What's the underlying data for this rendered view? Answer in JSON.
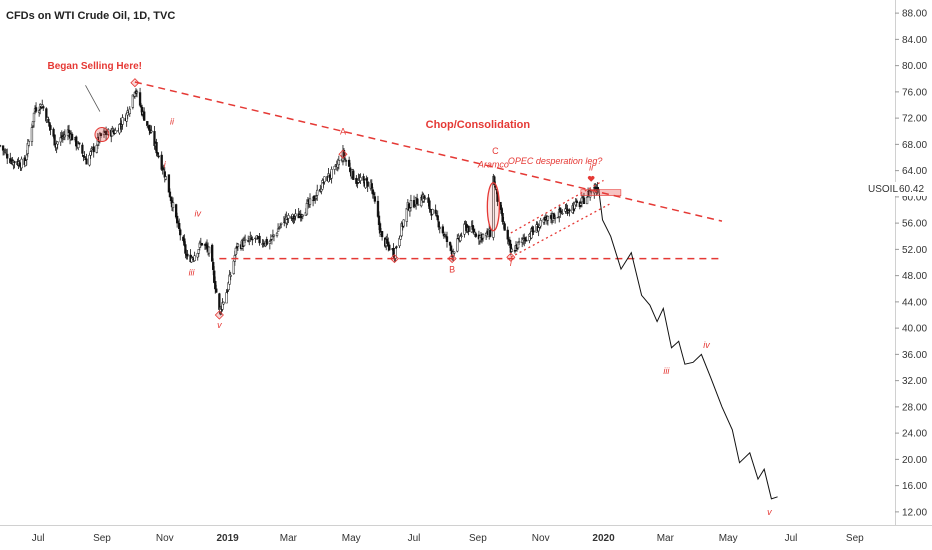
{
  "chart_data": {
    "type": "line",
    "title": "CFDs on WTI Crude Oil, 1D, TVC",
    "symbol": "USOIL",
    "last_value": "60.42",
    "y_ticks": [
      12,
      16,
      20,
      24,
      28,
      32,
      36,
      40,
      44,
      48,
      52,
      56,
      60,
      64,
      68,
      72,
      76,
      80,
      84,
      88
    ],
    "y_tick_labels": [
      "12.00",
      "16.00",
      "20.00",
      "24.00",
      "28.00",
      "32.00",
      "36.00",
      "40.00",
      "44.00",
      "48.00",
      "52.00",
      "56.00",
      "60.00",
      "64.00",
      "68.00",
      "72.00",
      "76.00",
      "80.00",
      "84.00",
      "88.00"
    ],
    "x_ticks": [
      {
        "date": "2018-07-01",
        "label": "Jul"
      },
      {
        "date": "2018-09-01",
        "label": "Sep"
      },
      {
        "date": "2018-11-01",
        "label": "Nov"
      },
      {
        "date": "2019-01-01",
        "label": "2019"
      },
      {
        "date": "2019-03-01",
        "label": "Mar"
      },
      {
        "date": "2019-05-01",
        "label": "May"
      },
      {
        "date": "2019-07-01",
        "label": "Jul"
      },
      {
        "date": "2019-09-01",
        "label": "Sep"
      },
      {
        "date": "2019-11-01",
        "label": "Nov"
      },
      {
        "date": "2020-01-01",
        "label": "2020"
      },
      {
        "date": "2020-03-01",
        "label": "Mar"
      },
      {
        "date": "2020-05-01",
        "label": "May"
      },
      {
        "date": "2020-07-01",
        "label": "Jul"
      },
      {
        "date": "2020-09-01",
        "label": "Sep"
      }
    ],
    "bold_x_labels": [
      "2019",
      "2020"
    ],
    "ylim": [
      10,
      90
    ],
    "xlim": [
      "2018-05-25",
      "2020-10-10"
    ],
    "price_series": [
      [
        "2018-05-25",
        67.8
      ],
      [
        "2018-06-05",
        65.5
      ],
      [
        "2018-06-18",
        65.0
      ],
      [
        "2018-06-28",
        73.5
      ],
      [
        "2018-07-05",
        74.0
      ],
      [
        "2018-07-18",
        68.0
      ],
      [
        "2018-07-30",
        70.0
      ],
      [
        "2018-08-10",
        67.5
      ],
      [
        "2018-08-17",
        65.5
      ],
      [
        "2018-09-01",
        69.5
      ],
      [
        "2018-09-14",
        70.0
      ],
      [
        "2018-09-25",
        72.5
      ],
      [
        "2018-10-03",
        76.5
      ],
      [
        "2018-10-10",
        73.0
      ],
      [
        "2018-10-20",
        69.0
      ],
      [
        "2018-11-01",
        63.5
      ],
      [
        "2018-11-13",
        56.0
      ],
      [
        "2018-11-23",
        50.5
      ],
      [
        "2018-11-29",
        51.0
      ],
      [
        "2018-12-07",
        53.0
      ],
      [
        "2018-12-15",
        51.5
      ],
      [
        "2018-12-24",
        42.5
      ],
      [
        "2019-01-01",
        46.0
      ],
      [
        "2019-01-10",
        52.5
      ],
      [
        "2019-01-25",
        53.5
      ],
      [
        "2019-02-10",
        53.0
      ],
      [
        "2019-02-25",
        56.5
      ],
      [
        "2019-03-10",
        57.0
      ],
      [
        "2019-03-25",
        59.5
      ],
      [
        "2019-04-05",
        62.5
      ],
      [
        "2019-04-15",
        64.0
      ],
      [
        "2019-04-23",
        66.5
      ],
      [
        "2019-05-05",
        62.5
      ],
      [
        "2019-05-20",
        62.0
      ],
      [
        "2019-05-31",
        53.5
      ],
      [
        "2019-06-12",
        51.5
      ],
      [
        "2019-06-25",
        58.5
      ],
      [
        "2019-07-10",
        60.0
      ],
      [
        "2019-07-25",
        56.0
      ],
      [
        "2019-08-07",
        51.5
      ],
      [
        "2019-08-20",
        55.5
      ],
      [
        "2019-09-03",
        54.0
      ],
      [
        "2019-09-14",
        54.5
      ],
      [
        "2019-09-16",
        62.9
      ],
      [
        "2019-09-22",
        58.0
      ],
      [
        "2019-10-03",
        51.5
      ],
      [
        "2019-10-15",
        53.5
      ],
      [
        "2019-10-30",
        55.5
      ],
      [
        "2019-11-12",
        57.0
      ],
      [
        "2019-11-25",
        58.0
      ],
      [
        "2019-12-10",
        59.0
      ],
      [
        "2019-12-20",
        61.0
      ],
      [
        "2019-12-27",
        61.5
      ]
    ],
    "projection_series": [
      [
        "2019-12-27",
        61.5
      ],
      [
        "2019-12-31",
        56.5
      ],
      [
        "2020-01-08",
        54.0
      ],
      [
        "2020-01-18",
        49.0
      ],
      [
        "2020-01-28",
        51.5
      ],
      [
        "2020-02-07",
        45.0
      ],
      [
        "2020-02-15",
        43.5
      ],
      [
        "2020-02-22",
        41.0
      ],
      [
        "2020-02-28",
        43.0
      ],
      [
        "2020-03-07",
        37.0
      ],
      [
        "2020-03-14",
        38.0
      ],
      [
        "2020-03-20",
        34.5
      ],
      [
        "2020-03-28",
        34.8
      ],
      [
        "2020-04-05",
        36.0
      ],
      [
        "2020-04-14",
        32.5
      ],
      [
        "2020-04-25",
        28.0
      ],
      [
        "2020-05-05",
        24.5
      ],
      [
        "2020-05-12",
        19.5
      ],
      [
        "2020-05-22",
        21.0
      ],
      [
        "2020-05-30",
        17.0
      ],
      [
        "2020-06-05",
        18.5
      ],
      [
        "2020-06-12",
        14.0
      ],
      [
        "2020-06-18",
        14.3
      ]
    ],
    "lines": [
      {
        "name": "downtrend",
        "from": [
          "2018-10-03",
          77.5
        ],
        "to": [
          "2020-04-25",
          56.3
        ],
        "style": "dashed"
      },
      {
        "name": "support",
        "from": [
          "2018-12-24",
          50.6
        ],
        "to": [
          "2020-04-25",
          50.6
        ],
        "style": "dashed"
      },
      {
        "name": "channel-upper",
        "from": [
          "2019-10-03",
          54.5
        ],
        "to": [
          "2020-01-01",
          62.5
        ],
        "style": "dotted"
      },
      {
        "name": "channel-lower",
        "from": [
          "2019-10-03",
          50.8
        ],
        "to": [
          "2020-01-08",
          59.0
        ],
        "style": "dotted"
      }
    ],
    "annotations": [
      {
        "text": "Began Selling Here!",
        "x": "2018-08-25",
        "y": 79.5,
        "style": "bold"
      },
      {
        "text": "Chop/Consolidation",
        "x": "2019-09-01",
        "y": 70.5,
        "style": "big"
      },
      {
        "text": "OPEC desperation leg?",
        "x": "2019-11-15",
        "y": 65.0,
        "style": "italic"
      },
      {
        "text": "Aramco",
        "x": "2019-09-16",
        "y": 64.5,
        "style": "italic"
      },
      {
        "text": "C",
        "x": "2019-09-18",
        "y": 66.5,
        "style": "plain"
      },
      {
        "text": "A",
        "x": "2019-04-23",
        "y": 69.5,
        "style": "plain"
      },
      {
        "text": "B",
        "x": "2019-08-07",
        "y": 48.5,
        "style": "plain"
      },
      {
        "text": "i",
        "x": "2018-11-01",
        "y": 64.5,
        "style": "italic"
      },
      {
        "text": "ii",
        "x": "2018-11-08",
        "y": 71.0,
        "style": "italic"
      },
      {
        "text": "iii",
        "x": "2018-11-27",
        "y": 48.0,
        "style": "italic"
      },
      {
        "text": "iv",
        "x": "2018-12-03",
        "y": 57.0,
        "style": "italic"
      },
      {
        "text": "v",
        "x": "2018-12-24",
        "y": 40.0,
        "style": "italic"
      },
      {
        "text": "i",
        "x": "2019-10-03",
        "y": 49.5,
        "style": "italic"
      },
      {
        "text": "ii",
        "x": "2019-12-20",
        "y": 64.0,
        "style": "italic"
      },
      {
        "text": "iii",
        "x": "2020-03-02",
        "y": 33.0,
        "style": "italic"
      },
      {
        "text": "iv",
        "x": "2020-04-10",
        "y": 37.0,
        "style": "italic"
      },
      {
        "text": "v",
        "x": "2020-06-10",
        "y": 11.5,
        "style": "italic"
      }
    ],
    "colors": {
      "price": "#111111",
      "annotation": "#e53935",
      "axis_text": "#333333",
      "badge_bg": "#ffffff"
    }
  }
}
